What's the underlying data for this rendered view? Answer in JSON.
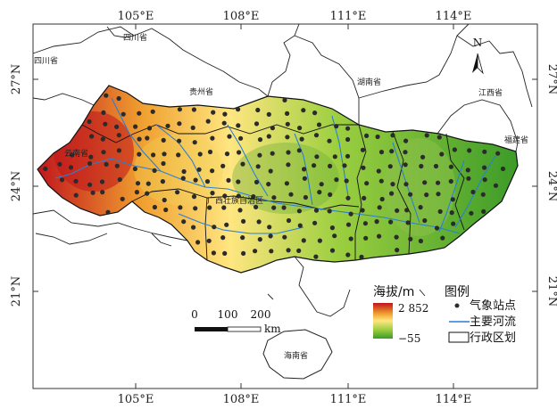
{
  "map": {
    "lon_ticks": [
      "105°E",
      "108°E",
      "111°E",
      "114°E"
    ],
    "lat_ticks": [
      "27°N",
      "24°N",
      "21°N"
    ],
    "provinces": [
      {
        "key": "sichuan",
        "label": "四川省"
      },
      {
        "key": "sichuan_left",
        "label": "四川省"
      },
      {
        "key": "guizhou",
        "label": "贵州省"
      },
      {
        "key": "hunan",
        "label": "湖南省"
      },
      {
        "key": "jiangxi",
        "label": "江西省"
      },
      {
        "key": "fujian",
        "label": "福建省"
      },
      {
        "key": "guangxi",
        "label": "广西壮族自治区"
      },
      {
        "key": "yunnan",
        "label": "云南省"
      },
      {
        "key": "hainan",
        "label": "海南省"
      }
    ],
    "north_arrow": {
      "label": "N",
      "icon": "north-arrow-icon"
    },
    "scale_bar": {
      "ticks": [
        "0",
        "100",
        "200"
      ],
      "unit": "km"
    },
    "elevation_legend": {
      "title": "海拔/m",
      "max": "2 852",
      "min": "−55",
      "colors": [
        "#c0141c",
        "#f0a030",
        "#ffe680",
        "#9ccf40",
        "#3a9a28"
      ]
    },
    "legend": {
      "title": "图例",
      "items": [
        {
          "label": "气象站点",
          "icon": "station-dot-icon"
        },
        {
          "label": "主要河流",
          "icon": "river-line-icon"
        },
        {
          "label": "行政区划",
          "icon": "admin-boundary-icon"
        }
      ]
    },
    "colors": {
      "river": "#2a7fd4",
      "station": "#2b2b2b",
      "boundary": "#1a1a1a",
      "high": "#c0141c",
      "low": "#3a9a28"
    }
  }
}
